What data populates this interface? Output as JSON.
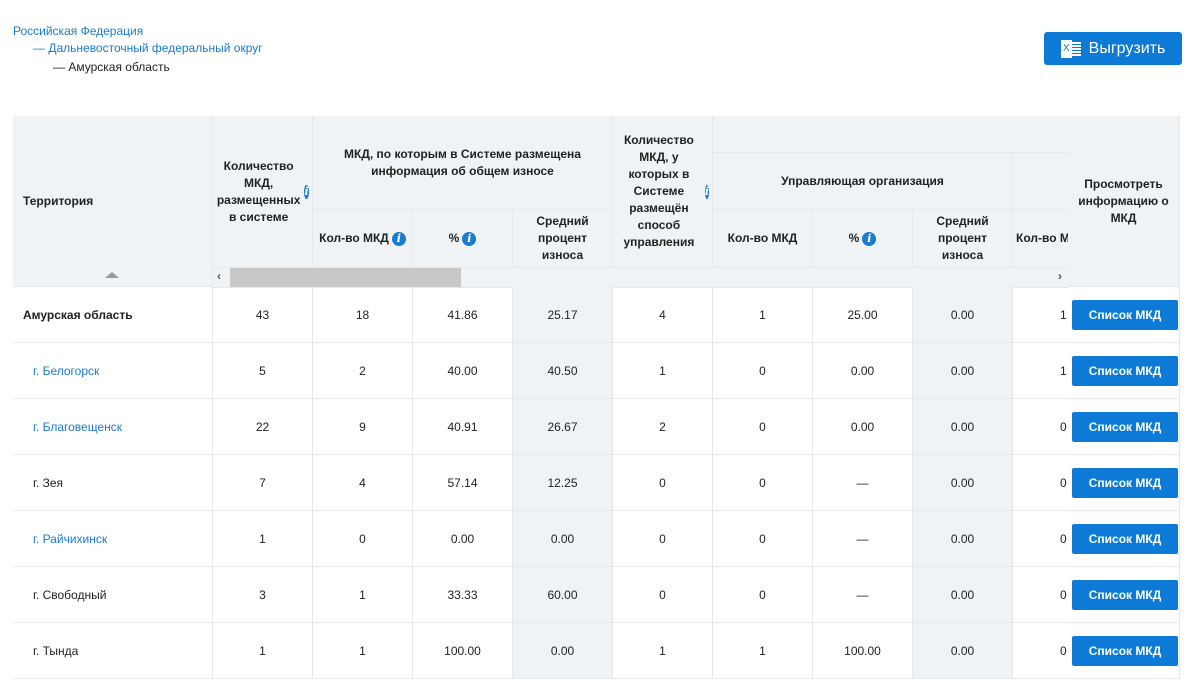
{
  "breadcrumb": [
    "Российская Федерация",
    "— Дальневосточный федеральный округ",
    "— Амурская область"
  ],
  "export_button": {
    "label": "Выгрузить",
    "icon": "excel-icon"
  },
  "headers": {
    "territory": "Территория",
    "count": "Количество МКД, размещенных в системе",
    "wear_group": "МКД, по которым в Системе размещена информация об общем износе",
    "count_mgmt": "Количество МКД, у которых в Системе размещён способ управления",
    "mgmt_org": "Управляющая организация",
    "view": "Просмотреть информацию о МКД",
    "kolvo": "Кол-во МКД",
    "pct": "%",
    "avg": "Средний процент износа",
    "kolvo_partial": "Кол-во МКД"
  },
  "rows": [
    {
      "name": "Амурская область",
      "link": false,
      "bold": true,
      "v": [
        "43",
        "18",
        "41.86",
        "25.17",
        "4",
        "1",
        "25.00",
        "0.00",
        "1"
      ]
    },
    {
      "name": "г. Белогорск",
      "link": true,
      "v": [
        "5",
        "2",
        "40.00",
        "40.50",
        "1",
        "0",
        "0.00",
        "0.00",
        "1"
      ]
    },
    {
      "name": "г. Благовещенск",
      "link": true,
      "v": [
        "22",
        "9",
        "40.91",
        "26.67",
        "2",
        "0",
        "0.00",
        "0.00",
        "0"
      ]
    },
    {
      "name": "г. Зея",
      "link": false,
      "v": [
        "7",
        "4",
        "57.14",
        "12.25",
        "0",
        "0",
        "—",
        "0.00",
        "0"
      ]
    },
    {
      "name": "г. Райчихинск",
      "link": true,
      "v": [
        "1",
        "0",
        "0.00",
        "0.00",
        "0",
        "0",
        "—",
        "0.00",
        "0"
      ]
    },
    {
      "name": "г. Свободный",
      "link": false,
      "v": [
        "3",
        "1",
        "33.33",
        "60.00",
        "0",
        "0",
        "—",
        "0.00",
        "0"
      ]
    },
    {
      "name": "г. Тында",
      "link": false,
      "v": [
        "1",
        "1",
        "100.00",
        "0.00",
        "1",
        "1",
        "100.00",
        "0.00",
        "0"
      ]
    }
  ],
  "list_button": "Список МКД",
  "colors": {
    "accent": "#0d7bd6",
    "header_bg": "#eff3f6"
  }
}
